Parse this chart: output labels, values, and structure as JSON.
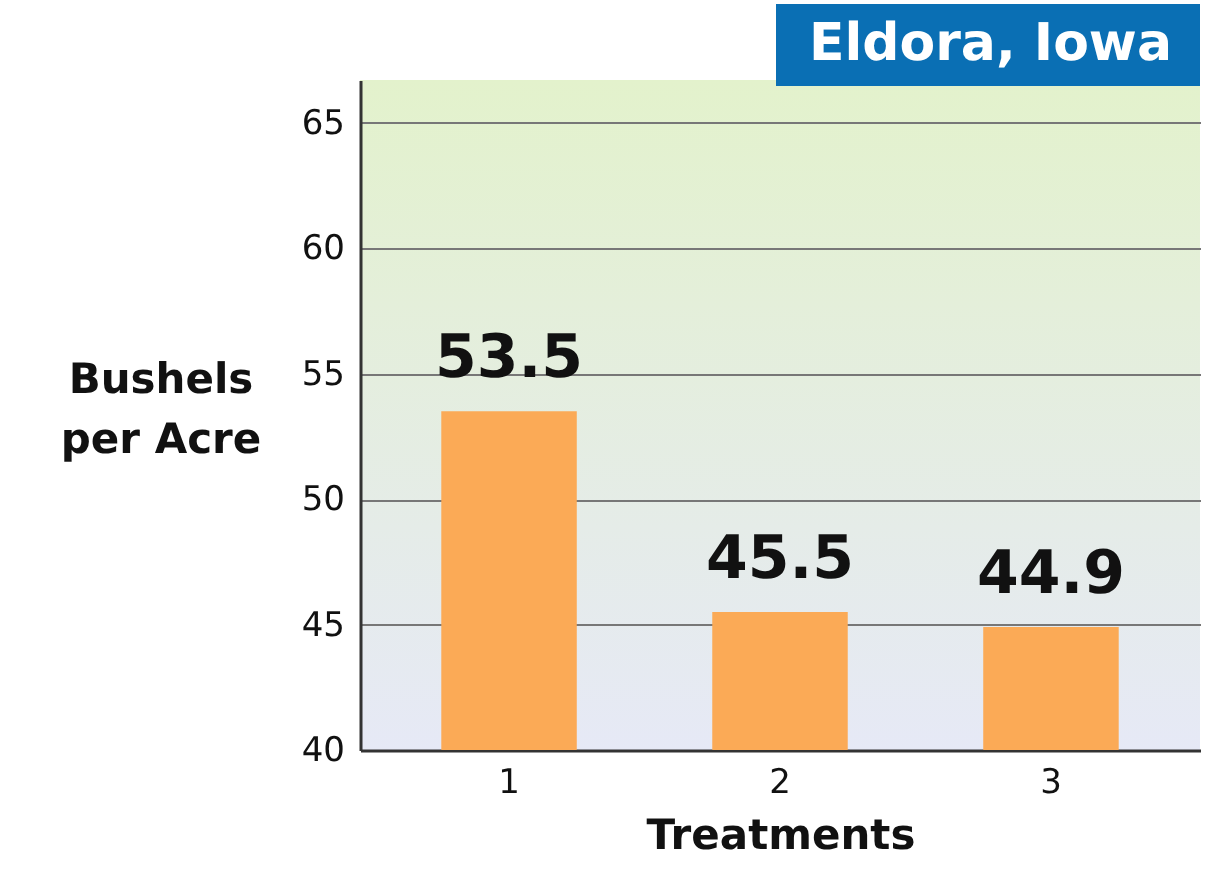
{
  "chart_data": {
    "type": "bar",
    "title": "Eldora, Iowa",
    "xlabel": "Treatments",
    "ylabel": "Bushels per Acre",
    "categories": [
      "1",
      "2",
      "3"
    ],
    "values": [
      53.5,
      45.5,
      44.9
    ],
    "color": "#fbaa56",
    "ylim": [
      40,
      66.7
    ],
    "yticks": [
      40,
      45,
      50,
      55,
      60,
      65
    ],
    "grid": "y",
    "data_labels": true
  }
}
